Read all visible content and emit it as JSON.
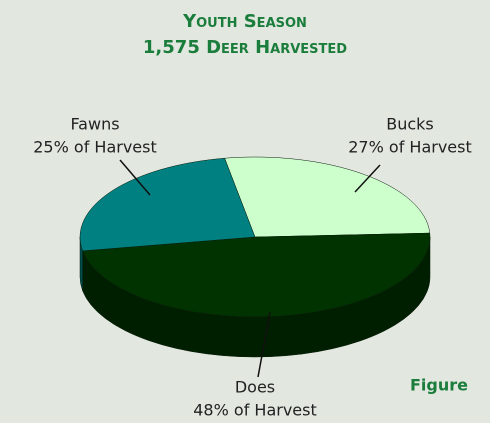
{
  "chart_data": {
    "type": "pie",
    "title": "Youth Season",
    "subtitle": "1,575 Deer Harvested",
    "categories": [
      "Bucks",
      "Does",
      "Fawns"
    ],
    "values": [
      27,
      48,
      25
    ],
    "value_labels": [
      "27% of Harvest",
      "48% of Harvest",
      "25% of Harvest"
    ],
    "colors": [
      "#ccffcc",
      "#003300",
      "#008080"
    ],
    "annotation": "Figure"
  }
}
